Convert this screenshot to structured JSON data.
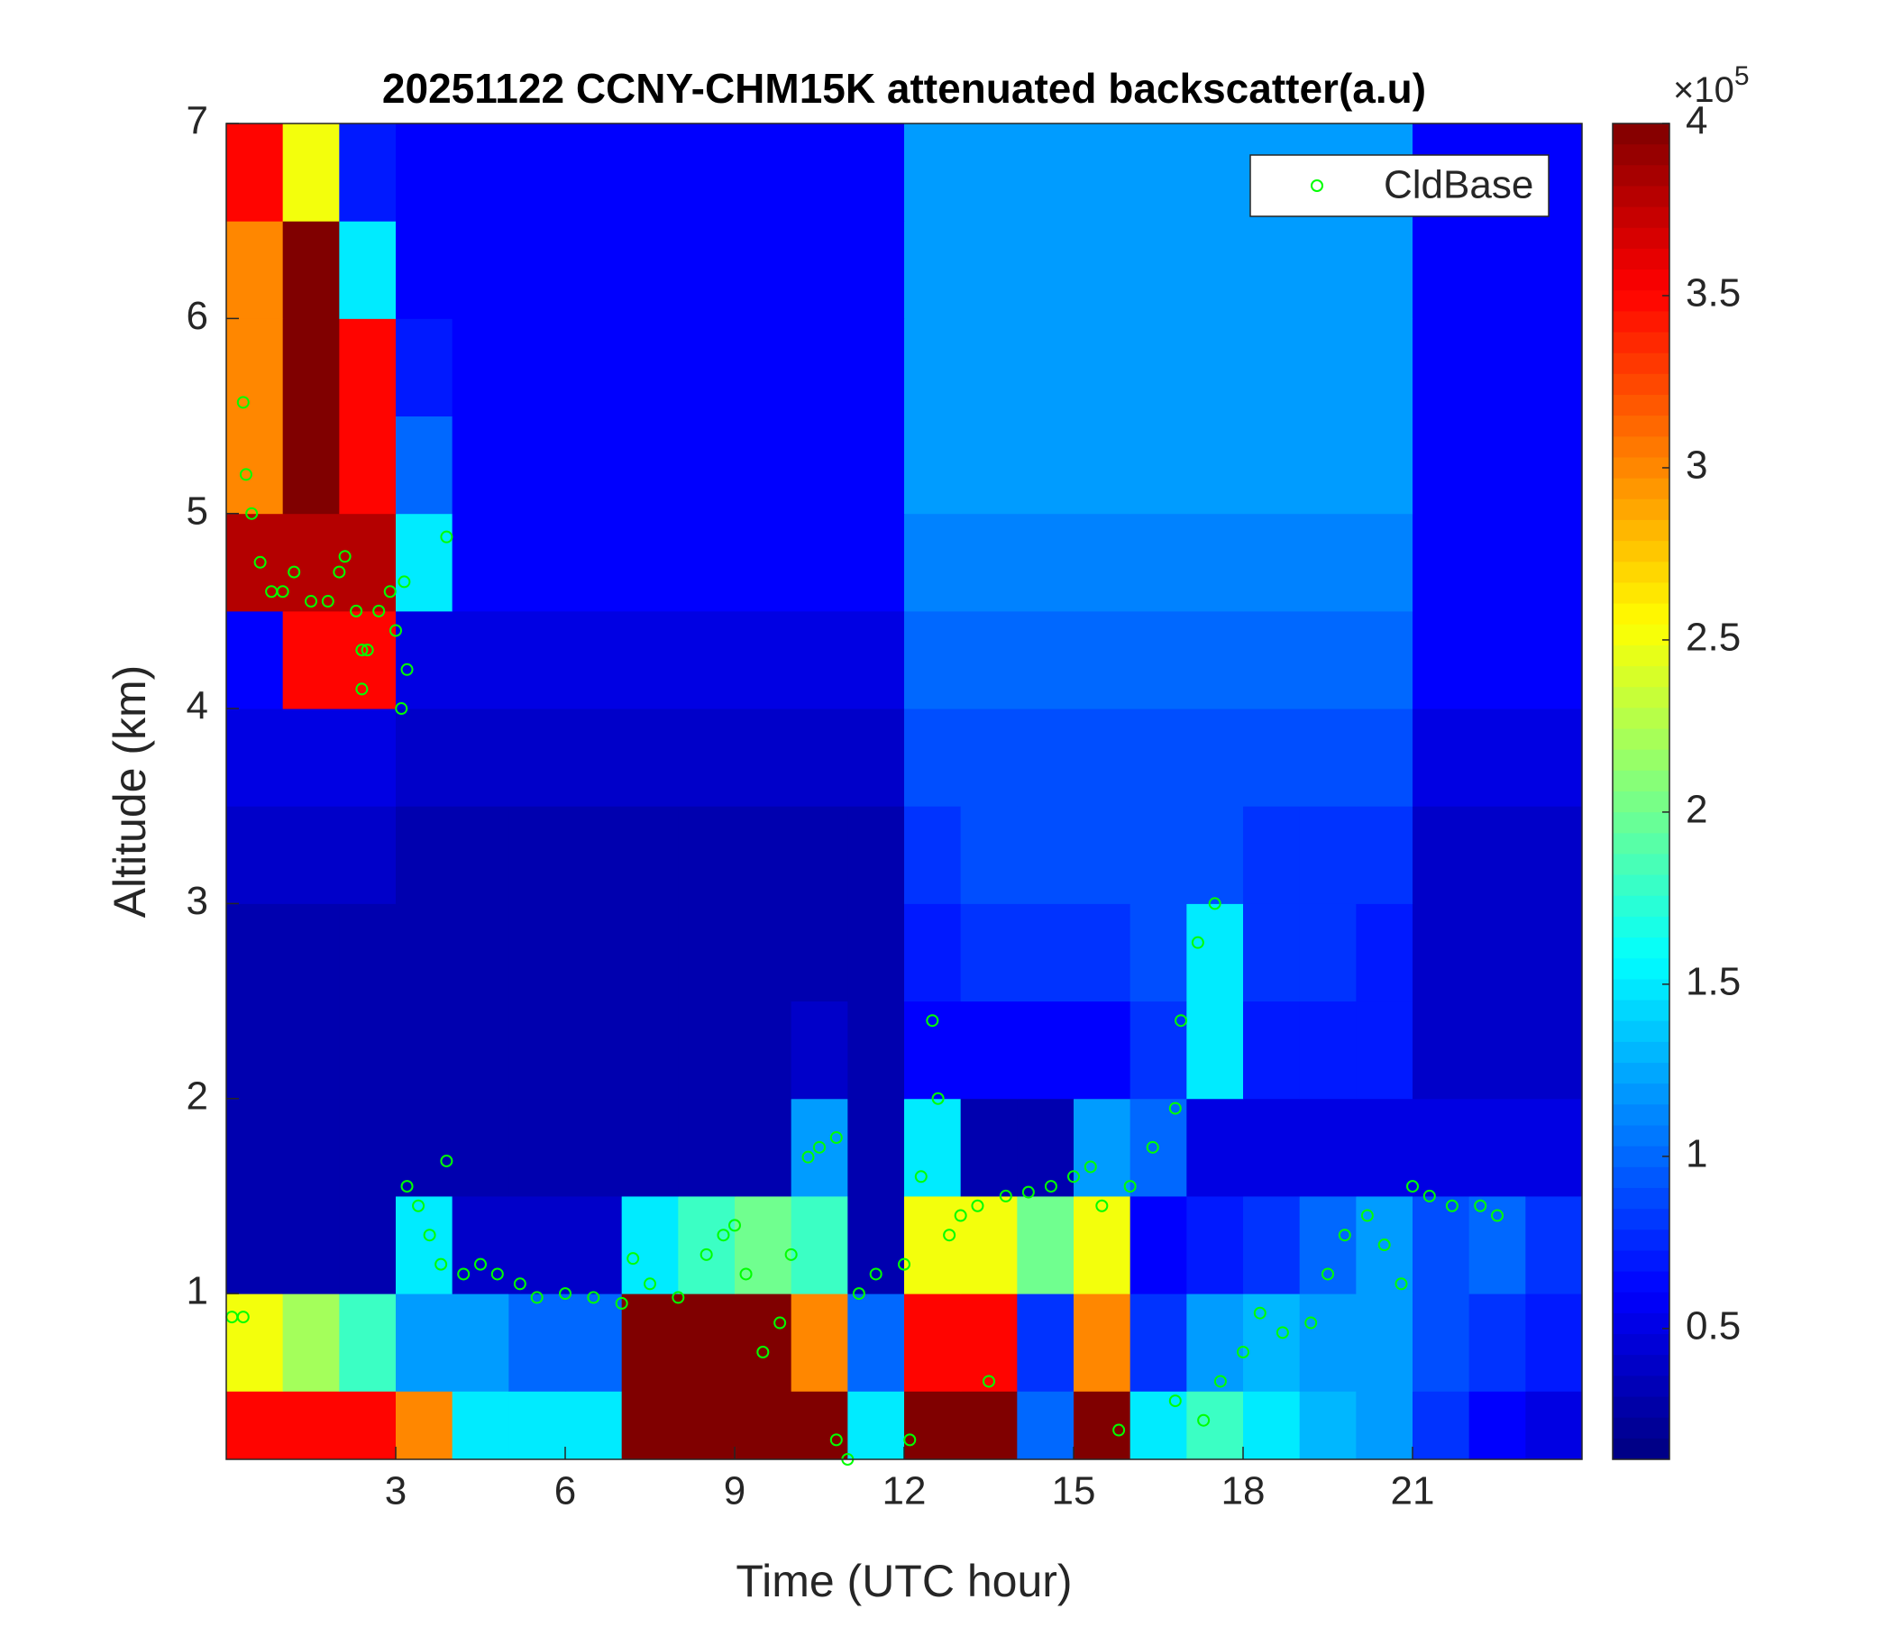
{
  "chart_data": {
    "type": "heatmap",
    "title": "20251122 CCNY-CHM15K attenuated backscatter(a.u)",
    "x_label": "Time (UTC hour)",
    "y_label": "Altitude (km)",
    "xlim": [
      0,
      24
    ],
    "ylim": [
      0.15,
      7
    ],
    "xticks": [
      3,
      6,
      9,
      12,
      15,
      18,
      21
    ],
    "yticks": [
      1,
      2,
      3,
      4,
      5,
      6,
      7
    ],
    "xbins": [
      0,
      1,
      2,
      3,
      4,
      5,
      6,
      7,
      8,
      9,
      10,
      11,
      12,
      13,
      14,
      15,
      16,
      17,
      18,
      19,
      20,
      21,
      22,
      23,
      24
    ],
    "ybins": [
      0.15,
      0.5,
      1,
      1.5,
      2,
      2.5,
      3,
      3.5,
      4,
      4.5,
      5,
      5.5,
      6,
      6.5,
      7
    ],
    "z": [
      [
        3.5,
        3.5,
        3.5,
        3.0,
        1.5,
        1.5,
        1.5,
        4,
        4,
        4,
        4,
        1.5,
        4,
        4,
        1,
        4,
        1.5,
        1.8,
        1.5,
        1.3,
        1.2,
        0.8,
        0.6,
        0.5
      ],
      [
        2.5,
        2.2,
        1.8,
        1.2,
        1.2,
        1.0,
        1.0,
        4,
        4,
        4,
        3,
        1.0,
        3.5,
        3.5,
        0.8,
        3,
        0.8,
        1.2,
        1.3,
        1.2,
        1.2,
        0.9,
        0.8,
        0.7
      ],
      [
        0.3,
        0.3,
        0.3,
        1.5,
        0.4,
        0.4,
        0.4,
        1.5,
        1.8,
        2,
        1.8,
        0.3,
        2.5,
        2.5,
        2,
        2.5,
        0.6,
        0.7,
        0.8,
        1.0,
        1.2,
        0.9,
        1.0,
        0.8
      ],
      [
        0.3,
        0.3,
        0.3,
        0.3,
        0.3,
        0.3,
        0.3,
        0.3,
        0.3,
        0.3,
        1.2,
        0.3,
        1.5,
        0.3,
        0.3,
        1.2,
        1.0,
        0.5,
        0.5,
        0.5,
        0.5,
        0.5,
        0.5,
        0.5
      ],
      [
        0.3,
        0.3,
        0.3,
        0.3,
        0.3,
        0.3,
        0.3,
        0.3,
        0.3,
        0.3,
        0.4,
        0.3,
        0.6,
        0.6,
        0.6,
        0.6,
        0.8,
        1.5,
        0.7,
        0.7,
        0.7,
        0.4,
        0.4,
        0.4
      ],
      [
        0.3,
        0.3,
        0.3,
        0.3,
        0.3,
        0.3,
        0.3,
        0.3,
        0.3,
        0.3,
        0.3,
        0.3,
        0.7,
        0.8,
        0.8,
        0.8,
        0.9,
        1.5,
        0.8,
        0.8,
        0.7,
        0.4,
        0.4,
        0.4
      ],
      [
        0.4,
        0.4,
        0.4,
        0.3,
        0.3,
        0.3,
        0.3,
        0.3,
        0.3,
        0.3,
        0.3,
        0.3,
        0.8,
        0.9,
        0.9,
        0.9,
        0.9,
        0.9,
        0.8,
        0.8,
        0.8,
        0.4,
        0.4,
        0.4
      ],
      [
        0.5,
        0.5,
        0.5,
        0.4,
        0.4,
        0.4,
        0.4,
        0.4,
        0.4,
        0.4,
        0.4,
        0.4,
        0.9,
        0.9,
        0.9,
        0.9,
        0.9,
        0.9,
        0.9,
        0.9,
        0.9,
        0.5,
        0.5,
        0.5
      ],
      [
        0.6,
        3.5,
        3.5,
        0.5,
        0.5,
        0.5,
        0.5,
        0.5,
        0.5,
        0.5,
        0.5,
        0.5,
        1.0,
        1.0,
        1.0,
        1.0,
        1.0,
        1.0,
        1.0,
        1.0,
        1.0,
        0.6,
        0.6,
        0.6
      ],
      [
        3.8,
        3.8,
        3.8,
        1.5,
        0.6,
        0.6,
        0.6,
        0.6,
        0.6,
        0.6,
        0.6,
        0.6,
        1.1,
        1.1,
        1.1,
        1.1,
        1.1,
        1.1,
        1.1,
        1.1,
        1.1,
        0.6,
        0.6,
        0.6
      ],
      [
        3,
        4,
        3.5,
        1,
        0.6,
        0.6,
        0.6,
        0.6,
        0.6,
        0.6,
        0.6,
        0.6,
        1.2,
        1.2,
        1.2,
        1.2,
        1.2,
        1.2,
        1.2,
        1.2,
        1.2,
        0.6,
        0.6,
        0.6
      ],
      [
        3,
        4,
        3.5,
        0.7,
        0.6,
        0.6,
        0.6,
        0.6,
        0.6,
        0.6,
        0.6,
        0.6,
        1.2,
        1.2,
        1.2,
        1.2,
        1.2,
        1.2,
        1.2,
        1.2,
        1.2,
        0.6,
        0.6,
        0.6
      ],
      [
        3,
        4,
        1.5,
        0.6,
        0.6,
        0.6,
        0.6,
        0.6,
        0.6,
        0.6,
        0.6,
        0.6,
        1.2,
        1.2,
        1.2,
        1.2,
        1.2,
        1.2,
        1.2,
        1.2,
        1.2,
        0.6,
        0.6,
        0.6
      ],
      [
        3.5,
        2.5,
        0.7,
        0.6,
        0.6,
        0.6,
        0.6,
        0.6,
        0.6,
        0.6,
        0.6,
        0.6,
        1.2,
        1.2,
        1.2,
        1.2,
        1.2,
        1.2,
        1.2,
        1.2,
        1.2,
        0.6,
        0.6,
        0.6
      ]
    ],
    "colormap": "jet",
    "clim": [
      0.12,
      4
    ],
    "cticks": [
      0.5,
      1,
      1.5,
      2,
      2.5,
      3,
      3.5,
      4
    ],
    "colorbar_multiplier": {
      "base": "×10",
      "exponent": "5"
    },
    "legend": "upper right",
    "series": [
      {
        "name": "CldBase",
        "type": "scatter",
        "color": "#00ff00",
        "x": [
          0.1,
          0.3,
          0.3,
          0.35,
          0.45,
          0.6,
          0.8,
          1.0,
          1.2,
          1.5,
          1.8,
          2.0,
          2.1,
          2.3,
          2.4,
          2.4,
          2.5,
          2.7,
          2.9,
          3.0,
          3.2,
          3.1,
          3.15,
          3.2,
          3.4,
          3.6,
          3.8,
          3.9,
          3.9,
          4.2,
          4.5,
          4.8,
          5.2,
          5.5,
          6,
          6.5,
          7,
          7.2,
          7.5,
          8,
          8.5,
          8.8,
          9,
          9.2,
          9.5,
          9.8,
          10,
          10.3,
          10.5,
          10.8,
          10.8,
          11,
          11.2,
          11.5,
          12,
          12.1,
          12.3,
          12.5,
          12.6,
          12.8,
          13,
          13.3,
          13.5,
          13.8,
          14.2,
          14.6,
          15,
          15.3,
          15.5,
          15.8,
          16,
          16.4,
          16.8,
          16.9,
          17.2,
          17.5,
          16.8,
          17.3,
          17.6,
          18,
          18.3,
          18.7,
          19.2,
          19.5,
          19.8,
          20.2,
          20.5,
          20.8,
          21,
          21.3,
          21.7,
          22.2,
          22.5
        ],
        "y": [
          0.88,
          0.88,
          5.57,
          5.2,
          5.0,
          4.75,
          4.6,
          4.6,
          4.7,
          4.55,
          4.55,
          4.7,
          4.78,
          4.5,
          4.3,
          4.1,
          4.3,
          4.5,
          4.6,
          4.4,
          4.2,
          4.0,
          4.65,
          1.55,
          1.45,
          1.3,
          1.15,
          4.88,
          1.68,
          1.1,
          1.15,
          1.1,
          1.05,
          0.98,
          1.0,
          0.98,
          0.95,
          1.18,
          1.05,
          0.98,
          1.2,
          1.3,
          1.35,
          1.1,
          0.7,
          0.85,
          1.2,
          1.7,
          1.75,
          1.8,
          0.25,
          0.15,
          1.0,
          1.1,
          1.15,
          0.25,
          1.6,
          2.4,
          2.0,
          1.3,
          1.4,
          1.45,
          0.55,
          1.5,
          1.52,
          1.55,
          1.6,
          1.65,
          1.45,
          0.3,
          1.55,
          1.75,
          1.95,
          2.4,
          2.8,
          3.0,
          0.45,
          0.35,
          0.55,
          0.7,
          0.9,
          0.8,
          0.85,
          1.1,
          1.3,
          1.4,
          1.25,
          1.05,
          1.55,
          1.5,
          1.45,
          1.45,
          1.4
        ]
      }
    ]
  }
}
